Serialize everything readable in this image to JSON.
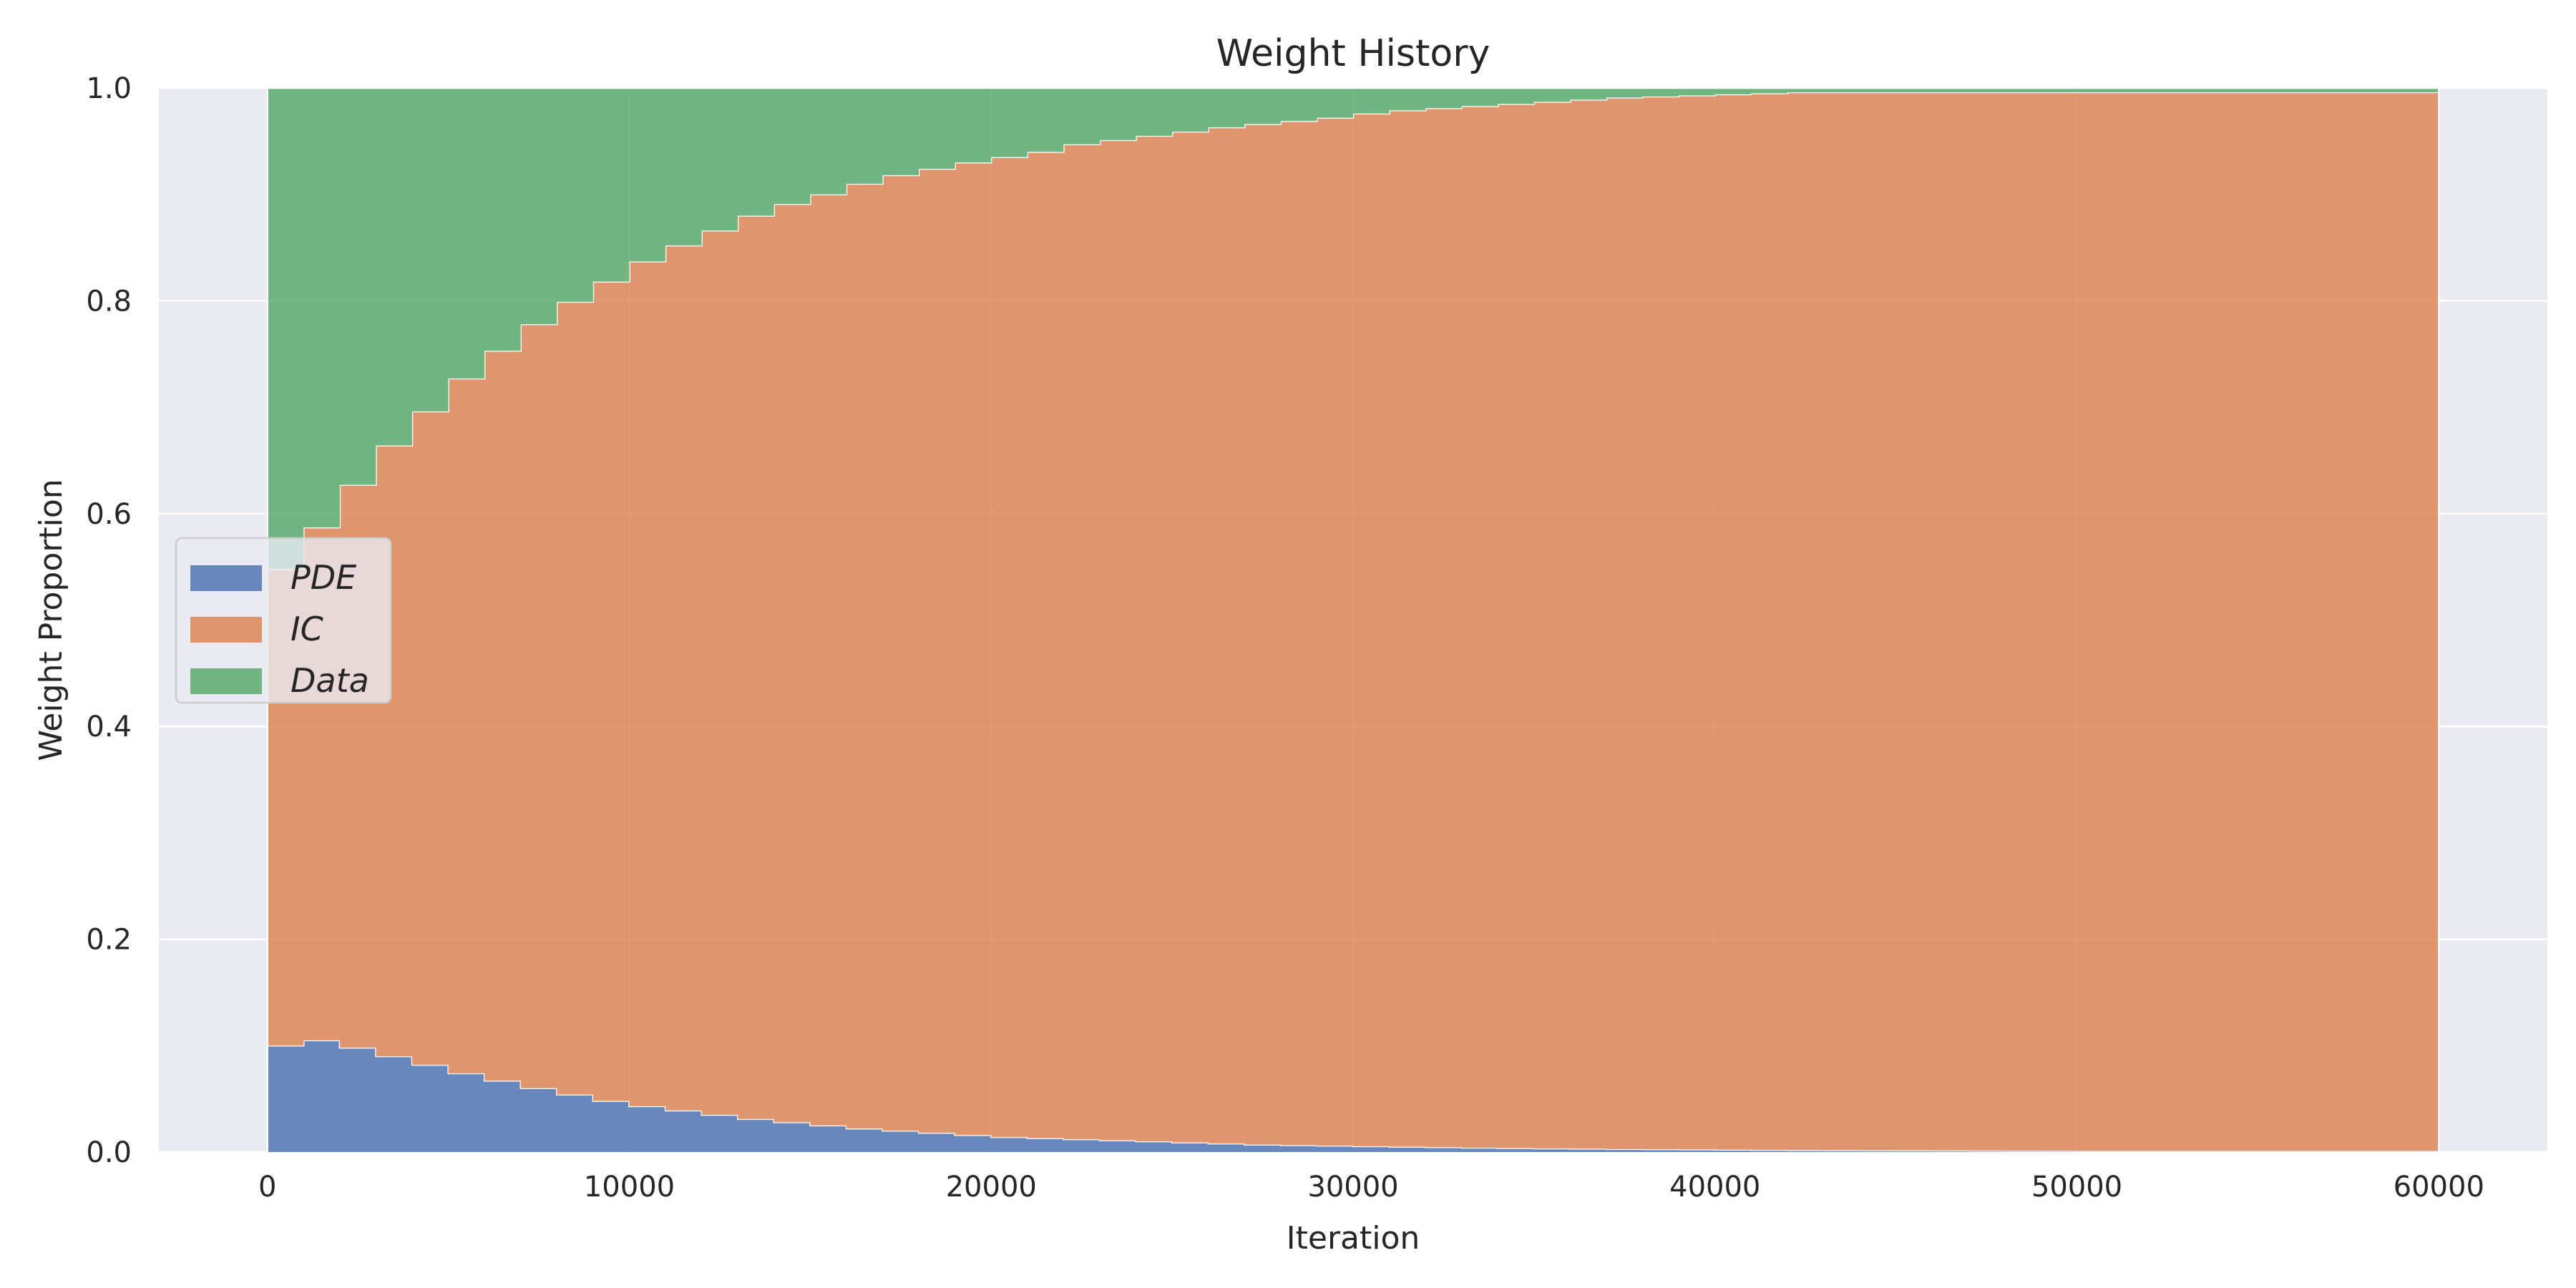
{
  "chart_data": {
    "type": "area",
    "title": "Weight History",
    "xlabel": "Iteration",
    "ylabel": "Weight Proportion",
    "xlim": [
      -3000,
      63000
    ],
    "ylim": [
      0,
      1
    ],
    "xticks": [
      0,
      10000,
      20000,
      30000,
      40000,
      50000,
      60000
    ],
    "xtick_labels": [
      "0",
      "10000",
      "20000",
      "30000",
      "40000",
      "50000",
      "60000"
    ],
    "yticks": [
      0,
      0.2,
      0.4,
      0.6,
      0.8,
      1.0
    ],
    "ytick_labels": [
      "0.0",
      "0.2",
      "0.4",
      "0.6",
      "0.8",
      "1.0"
    ],
    "grid": true,
    "legend_position": "center-left",
    "stacked": true,
    "step": true,
    "x": [
      0,
      1000,
      2000,
      3000,
      4000,
      5000,
      6000,
      7000,
      8000,
      9000,
      10000,
      11000,
      12000,
      13000,
      14000,
      15000,
      16000,
      17000,
      18000,
      19000,
      20000,
      21000,
      22000,
      23000,
      24000,
      25000,
      26000,
      27000,
      28000,
      29000,
      30000,
      31000,
      32000,
      33000,
      34000,
      35000,
      36000,
      37000,
      38000,
      39000,
      40000,
      41000,
      42000,
      43000,
      44000,
      45000,
      46000,
      47000,
      48000,
      49000,
      50000,
      51000,
      52000,
      53000,
      54000,
      55000,
      56000,
      57000,
      58000,
      59000,
      60000
    ],
    "series": [
      {
        "name": "PDE",
        "color": "#4c72b0",
        "values": [
          0.1,
          0.105,
          0.098,
          0.09,
          0.082,
          0.074,
          0.067,
          0.06,
          0.054,
          0.048,
          0.043,
          0.039,
          0.035,
          0.031,
          0.028,
          0.025,
          0.022,
          0.02,
          0.018,
          0.016,
          0.014,
          0.013,
          0.012,
          0.011,
          0.01,
          0.009,
          0.008,
          0.007,
          0.0065,
          0.006,
          0.0055,
          0.005,
          0.0045,
          0.004,
          0.0037,
          0.0034,
          0.0031,
          0.0028,
          0.0026,
          0.0024,
          0.0022,
          0.002,
          0.0018,
          0.0017,
          0.0016,
          0.0015,
          0.0014,
          0.0013,
          0.0012,
          0.0011,
          0.001,
          0.001,
          0.001,
          0.001,
          0.001,
          0.001,
          0.001,
          0.001,
          0.001,
          0.001,
          0.001
        ]
      },
      {
        "name": "IC",
        "color": "#dd8452",
        "values": [
          0.448,
          0.482,
          0.529,
          0.574,
          0.614,
          0.653,
          0.686,
          0.718,
          0.745,
          0.77,
          0.794,
          0.813,
          0.831,
          0.849,
          0.863,
          0.875,
          0.888,
          0.898,
          0.906,
          0.914,
          0.921,
          0.927,
          0.935,
          0.94,
          0.945,
          0.95,
          0.955,
          0.959,
          0.9625,
          0.966,
          0.9705,
          0.974,
          0.9765,
          0.979,
          0.9813,
          0.9836,
          0.9859,
          0.9882,
          0.9894,
          0.9906,
          0.9918,
          0.993,
          0.9942,
          0.9943,
          0.9944,
          0.9945,
          0.9946,
          0.9947,
          0.9948,
          0.9949,
          0.995,
          0.995,
          0.995,
          0.995,
          0.995,
          0.995,
          0.995,
          0.995,
          0.995,
          0.995,
          0.995
        ]
      },
      {
        "name": "Data",
        "color": "#55a868",
        "values": [
          0.452,
          0.413,
          0.373,
          0.336,
          0.304,
          0.273,
          0.247,
          0.222,
          0.201,
          0.182,
          0.163,
          0.148,
          0.134,
          0.12,
          0.109,
          0.1,
          0.09,
          0.082,
          0.076,
          0.07,
          0.065,
          0.06,
          0.053,
          0.049,
          0.045,
          0.041,
          0.037,
          0.034,
          0.031,
          0.028,
          0.024,
          0.021,
          0.019,
          0.017,
          0.015,
          0.013,
          0.011,
          0.009,
          0.008,
          0.007,
          0.006,
          0.005,
          0.004,
          0.004,
          0.004,
          0.004,
          0.004,
          0.004,
          0.004,
          0.004,
          0.004,
          0.004,
          0.004,
          0.004,
          0.004,
          0.004,
          0.004,
          0.004,
          0.004,
          0.004,
          0.004
        ]
      }
    ],
    "colors": {
      "plot_background": "#eaeaf2",
      "grid": "#ffffff",
      "text": "#262626",
      "legend_background": "#eaeaf2",
      "legend_border": "#cccccc"
    }
  }
}
